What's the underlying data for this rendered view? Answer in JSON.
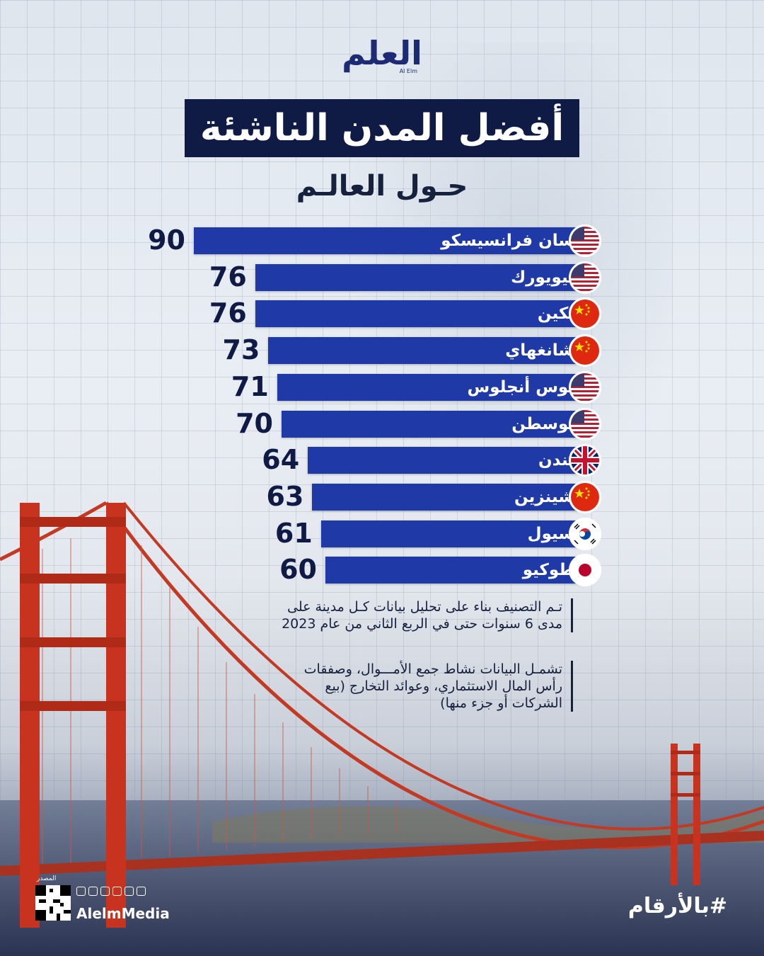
{
  "brand": {
    "name_ar": "العلم",
    "name_en": "Al Elm",
    "handle": "AlelmMedia",
    "source_label": "المصدر"
  },
  "title": "أفضل المدن الناشئة",
  "subtitle": "حـول العالـم",
  "hashtag": "#بالأرقام",
  "notes": [
    "تـم التصنيف بناء على تحليل بيانات كـل مدينة على مدى 6 سنوات حتى في الربع الثاني من عام 2023",
    "تشمـل البيانات نشاط جمع الأمـــوال، وصفقات رأس المال الاستثماري، وعوائد التخارج (بيع الشركات أو جزء منها)"
  ],
  "colors": {
    "bar": "#1f3aa6",
    "title_bg": "#0f1a45",
    "text": "#0f1a45"
  },
  "chart_data": {
    "type": "bar",
    "orientation": "horizontal",
    "title": "أفضل المدن الناشئة",
    "subtitle": "حـول العالـم",
    "categories": [
      "سان فرانسيسكو",
      "نيويورك",
      "بكين",
      "شانغهاي",
      "لوس أنجلوس",
      "بوسطن",
      "لندن",
      "شينزين",
      "سيول",
      "طوكيو"
    ],
    "values": [
      90,
      76,
      76,
      73,
      71,
      70,
      64,
      63,
      61,
      60
    ],
    "flags": [
      "us-flag-icon",
      "us-flag-icon",
      "china-flag-icon",
      "china-flag-icon",
      "us-flag-icon",
      "us-flag-icon",
      "uk-flag-icon",
      "china-flag-icon",
      "korea-flag-icon",
      "japan-flag-icon"
    ],
    "xlim": [
      0,
      90
    ],
    "grid": false,
    "legend": "none"
  }
}
